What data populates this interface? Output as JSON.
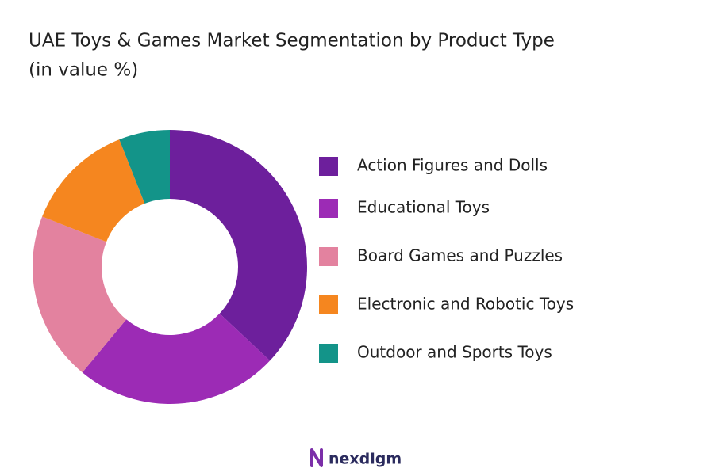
{
  "chart_data": {
    "type": "donut",
    "title": "UAE Toys & Games Market Segmentation by Product Type",
    "subtitle": "(in value %)",
    "categories": [
      "Action Figures and Dolls",
      "Educational Toys",
      "Board Games and Puzzles",
      "Electronic and Robotic Toys",
      "Outdoor and Sports Toys"
    ],
    "values": [
      37,
      24,
      20,
      13,
      6
    ],
    "colors": [
      "#6d1f9c",
      "#9c2bb5",
      "#e3829f",
      "#f5861f",
      "#139489"
    ],
    "legend": "right"
  },
  "footer": {
    "logo": "nexdigm"
  }
}
